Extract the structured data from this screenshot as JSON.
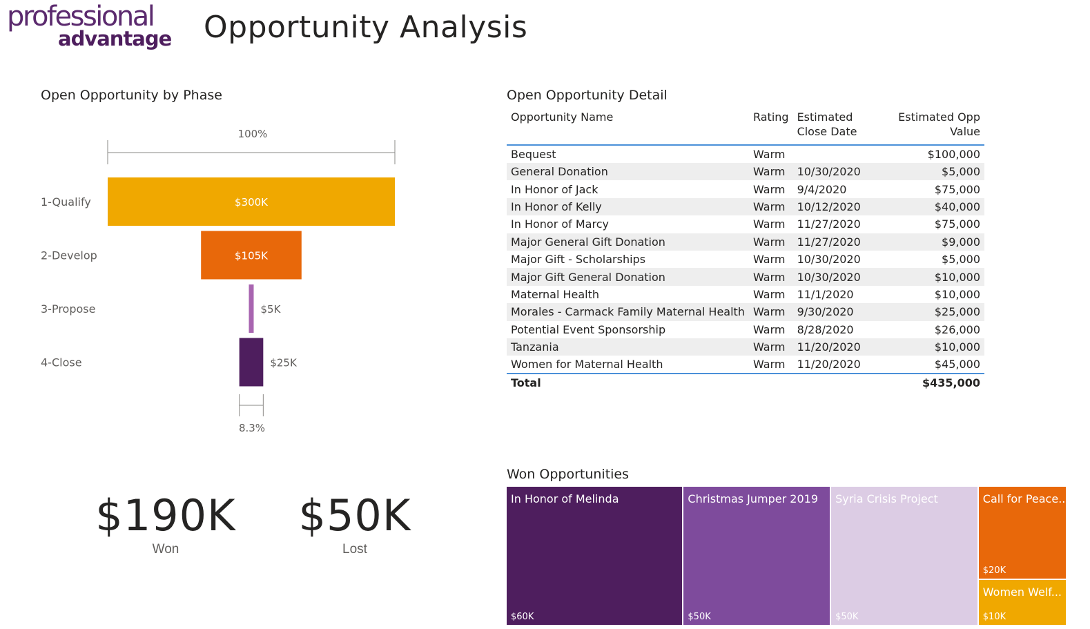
{
  "logo": {
    "top": "professional",
    "bottom": "advantage"
  },
  "page_title": "Opportunity Analysis",
  "funnel": {
    "title": "Open Opportunity by Phase",
    "top_percent_label": "100%",
    "bottom_percent_label": "8.3%"
  },
  "table": {
    "title": "Open Opportunity Detail",
    "columns": [
      "Opportunity Name",
      "Rating",
      "Estimated Close Date",
      "Estimated Opp Value"
    ],
    "rows": [
      [
        "Bequest",
        "Warm",
        "",
        "$100,000"
      ],
      [
        "General Donation",
        "Warm",
        "10/30/2020",
        "$5,000"
      ],
      [
        "In Honor of Jack",
        "Warm",
        "9/4/2020",
        "$75,000"
      ],
      [
        "In Honor of Kelly",
        "Warm",
        "10/12/2020",
        "$40,000"
      ],
      [
        "In Honor of Marcy",
        "Warm",
        "11/27/2020",
        "$75,000"
      ],
      [
        "Major General Gift Donation",
        "Warm",
        "11/27/2020",
        "$9,000"
      ],
      [
        "Major Gift - Scholarships",
        "Warm",
        "10/30/2020",
        "$5,000"
      ],
      [
        "Major Gift General Donation",
        "Warm",
        "10/30/2020",
        "$10,000"
      ],
      [
        "Maternal Health",
        "Warm",
        "11/1/2020",
        "$10,000"
      ],
      [
        "Morales - Carmack Family Maternal Health",
        "Warm",
        "9/30/2020",
        "$25,000"
      ],
      [
        "Potential Event Sponsorship",
        "Warm",
        "8/28/2020",
        "$26,000"
      ],
      [
        "Tanzania",
        "Warm",
        "11/20/2020",
        "$10,000"
      ],
      [
        "Women for Maternal Health",
        "Warm",
        "11/20/2020",
        "$45,000"
      ]
    ],
    "total_label": "Total",
    "total_value": "$435,000"
  },
  "kpis": [
    {
      "value": "$190K",
      "label": "Won"
    },
    {
      "value": "$50K",
      "label": "Lost"
    }
  ],
  "treemap": {
    "title": "Won Opportunities"
  },
  "chart_data": [
    {
      "type": "funnel",
      "title": "Open Opportunity by Phase",
      "categories": [
        "1-Qualify",
        "2-Develop",
        "3-Propose",
        "4-Close"
      ],
      "values": [
        300,
        105,
        5,
        25
      ],
      "value_labels": [
        "$300K",
        "$105K",
        "$5K",
        "$25K"
      ],
      "colors": [
        "#f0a800",
        "#e8680a",
        "#a865b0",
        "#4e1e5e"
      ],
      "unit": "K"
    },
    {
      "type": "treemap",
      "title": "Won Opportunities",
      "items": [
        {
          "name": "In Honor of Melinda",
          "value": 60,
          "value_label": "$60K",
          "color": "#4e1e5e",
          "text_color": "#ffffff"
        },
        {
          "name": "Christmas Jumper 2019",
          "value": 50,
          "value_label": "$50K",
          "color": "#7e4b9c",
          "text_color": "#ffffff"
        },
        {
          "name": "Syria Crisis Project",
          "value": 50,
          "value_label": "$50K",
          "color": "#dccce4",
          "text_color": "#ffffff"
        },
        {
          "name": "Call for Peace...",
          "value": 20,
          "value_label": "$20K",
          "color": "#e8680a",
          "text_color": "#ffffff"
        },
        {
          "name": "Women Welf...",
          "value": 10,
          "value_label": "$10K",
          "color": "#f0a800",
          "text_color": "#ffffff"
        }
      ]
    }
  ]
}
